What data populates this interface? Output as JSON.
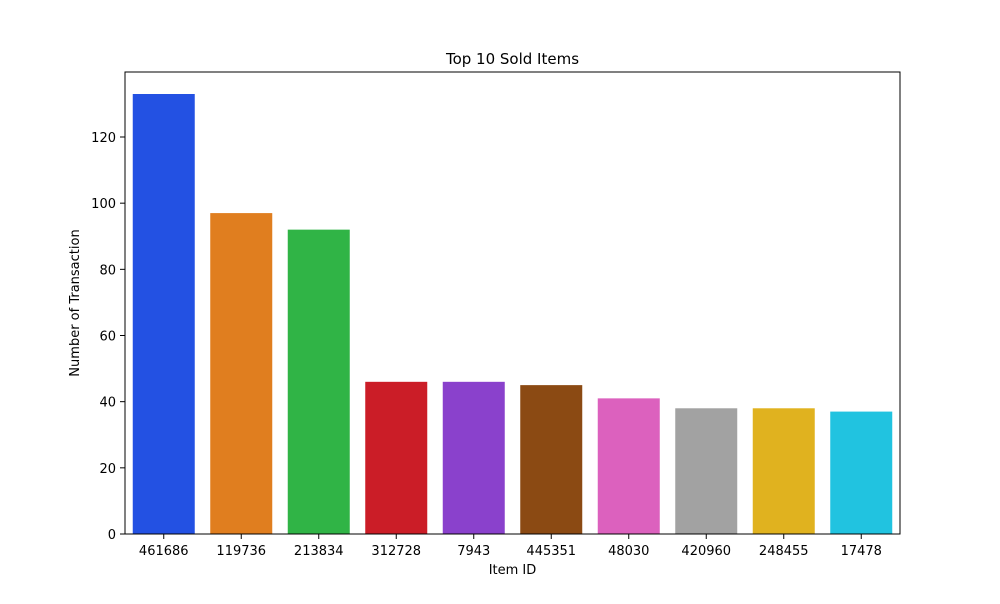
{
  "chart_data": {
    "type": "bar",
    "title": "Top 10 Sold Items",
    "xlabel": "Item ID",
    "ylabel": "Number of Transaction",
    "categories": [
      "461686",
      "119736",
      "213834",
      "312728",
      "7943",
      "445351",
      "48030",
      "420960",
      "248455",
      "17478"
    ],
    "values": [
      133,
      97,
      92,
      46,
      46,
      45,
      41,
      38,
      38,
      37
    ],
    "colors": [
      "#2351e3",
      "#e07e1f",
      "#30b446",
      "#cb1d27",
      "#8a41cc",
      "#8b4a13",
      "#dc61be",
      "#a2a2a2",
      "#e0b21f",
      "#21c3e0"
    ],
    "ylim": [
      0,
      139.65
    ],
    "yticks": [
      0,
      20,
      40,
      60,
      80,
      100,
      120
    ],
    "grid": false,
    "legend": "none"
  }
}
